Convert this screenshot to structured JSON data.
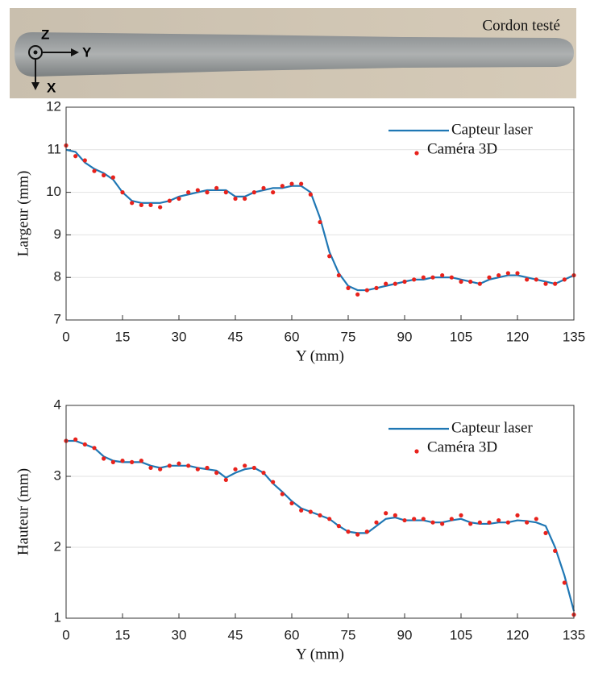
{
  "photo": {
    "label": "Cordon testé",
    "axes": [
      "Z",
      "Y",
      "X"
    ]
  },
  "chart_data": [
    {
      "type": "line",
      "xlabel": "Y (mm)",
      "ylabel": "Largeur (mm)",
      "x": [
        0,
        2.5,
        5,
        7.5,
        10,
        12.5,
        15,
        17.5,
        20,
        22.5,
        25,
        27.5,
        30,
        32.5,
        35,
        37.5,
        40,
        42.5,
        45,
        47.5,
        50,
        52.5,
        55,
        57.5,
        60,
        62.5,
        65,
        67.5,
        70,
        72.5,
        75,
        77.5,
        80,
        82.5,
        85,
        87.5,
        90,
        92.5,
        95,
        97.5,
        100,
        102.5,
        105,
        107.5,
        110,
        112.5,
        115,
        117.5,
        120,
        122.5,
        125,
        127.5,
        130,
        132.5,
        135
      ],
      "series": [
        {
          "name": "Capteur laser",
          "type": "line",
          "color": "#1f77b4",
          "values": [
            11.0,
            10.95,
            10.7,
            10.55,
            10.45,
            10.3,
            10.0,
            9.8,
            9.75,
            9.75,
            9.75,
            9.8,
            9.9,
            9.95,
            10.0,
            10.05,
            10.05,
            10.05,
            9.9,
            9.9,
            10.0,
            10.05,
            10.1,
            10.1,
            10.15,
            10.15,
            10.0,
            9.4,
            8.6,
            8.1,
            7.8,
            7.7,
            7.7,
            7.75,
            7.8,
            7.85,
            7.9,
            7.95,
            7.95,
            8.0,
            8.0,
            8.0,
            7.95,
            7.9,
            7.85,
            7.95,
            8.0,
            8.05,
            8.05,
            8.0,
            7.95,
            7.9,
            7.85,
            7.95,
            8.05
          ]
        },
        {
          "name": "Caméra 3D",
          "type": "scatter",
          "color": "#e8221c",
          "values": [
            11.1,
            10.85,
            10.75,
            10.5,
            10.4,
            10.35,
            10.0,
            9.75,
            9.7,
            9.7,
            9.65,
            9.8,
            9.85,
            10.0,
            10.05,
            10.0,
            10.1,
            10.0,
            9.85,
            9.85,
            10.0,
            10.1,
            10.0,
            10.15,
            10.2,
            10.2,
            9.95,
            9.3,
            8.5,
            8.05,
            7.75,
            7.6,
            7.7,
            7.75,
            7.85,
            7.85,
            7.9,
            7.95,
            8.0,
            8.0,
            8.05,
            8.0,
            7.9,
            7.9,
            7.85,
            8.0,
            8.05,
            8.1,
            8.1,
            7.95,
            7.95,
            7.85,
            7.85,
            7.95,
            8.05
          ]
        }
      ],
      "xlim": [
        0,
        135
      ],
      "xticks": [
        0,
        15,
        30,
        45,
        60,
        75,
        90,
        105,
        120,
        135
      ],
      "ylim": [
        7,
        12
      ],
      "yticks": [
        7,
        8,
        9,
        10,
        11,
        12
      ],
      "grid": true,
      "legend": "upper right"
    },
    {
      "type": "line",
      "xlabel": "Y (mm)",
      "ylabel": "Hauteur (mm)",
      "x": [
        0,
        2.5,
        5,
        7.5,
        10,
        12.5,
        15,
        17.5,
        20,
        22.5,
        25,
        27.5,
        30,
        32.5,
        35,
        37.5,
        40,
        42.5,
        45,
        47.5,
        50,
        52.5,
        55,
        57.5,
        60,
        62.5,
        65,
        67.5,
        70,
        72.5,
        75,
        77.5,
        80,
        82.5,
        85,
        87.5,
        90,
        92.5,
        95,
        97.5,
        100,
        102.5,
        105,
        107.5,
        110,
        112.5,
        115,
        117.5,
        120,
        122.5,
        125,
        127.5,
        130,
        132.5,
        135
      ],
      "series": [
        {
          "name": "Capteur laser",
          "type": "line",
          "color": "#1f77b4",
          "values": [
            3.5,
            3.5,
            3.45,
            3.4,
            3.28,
            3.22,
            3.2,
            3.2,
            3.2,
            3.15,
            3.12,
            3.15,
            3.15,
            3.15,
            3.12,
            3.1,
            3.08,
            2.98,
            3.05,
            3.1,
            3.12,
            3.05,
            2.9,
            2.78,
            2.65,
            2.55,
            2.5,
            2.45,
            2.4,
            2.3,
            2.22,
            2.2,
            2.2,
            2.3,
            2.4,
            2.42,
            2.38,
            2.38,
            2.38,
            2.35,
            2.35,
            2.38,
            2.4,
            2.35,
            2.33,
            2.33,
            2.35,
            2.35,
            2.38,
            2.37,
            2.35,
            2.3,
            2.0,
            1.6,
            1.1
          ]
        },
        {
          "name": "Caméra 3D",
          "type": "scatter",
          "color": "#e8221c",
          "values": [
            3.5,
            3.52,
            3.45,
            3.4,
            3.25,
            3.2,
            3.22,
            3.2,
            3.22,
            3.12,
            3.1,
            3.15,
            3.18,
            3.15,
            3.1,
            3.12,
            3.05,
            2.95,
            3.1,
            3.15,
            3.12,
            3.05,
            2.92,
            2.75,
            2.62,
            2.52,
            2.5,
            2.45,
            2.4,
            2.3,
            2.22,
            2.18,
            2.22,
            2.35,
            2.48,
            2.45,
            2.38,
            2.4,
            2.4,
            2.35,
            2.33,
            2.4,
            2.45,
            2.33,
            2.35,
            2.35,
            2.38,
            2.35,
            2.45,
            2.35,
            2.4,
            2.2,
            1.95,
            1.5,
            1.05
          ]
        }
      ],
      "xlim": [
        0,
        135
      ],
      "xticks": [
        0,
        15,
        30,
        45,
        60,
        75,
        90,
        105,
        120,
        135
      ],
      "ylim": [
        1,
        4
      ],
      "yticks": [
        1,
        2,
        3,
        4
      ],
      "grid": true,
      "legend": "upper right"
    }
  ]
}
